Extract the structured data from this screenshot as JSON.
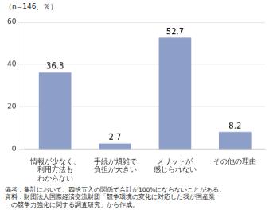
{
  "chart_data": {
    "type": "bar",
    "subtitle": "（n=146、％）",
    "categories": [
      "情報が少なく、\n利用方法も\nわからない",
      "手続が煩雑で\n負担が大きい",
      "メリットが\n感じられない",
      "その他の理由"
    ],
    "values": [
      36.3,
      2.7,
      52.7,
      8.2
    ],
    "color": "#8d9fc8",
    "ylim": [
      0,
      60
    ],
    "yticks": [
      0,
      20,
      40,
      60
    ],
    "grid": true,
    "data_labels": true,
    "annotations": [
      "備考：集計において、四捨五入の関係で合計が100%にならないことがある。",
      "資料：財団法人国際経済交流財団「競争環境の変化に対応した我が国産業\n　の競争力強化に関する調査研究」から作成。"
    ]
  }
}
